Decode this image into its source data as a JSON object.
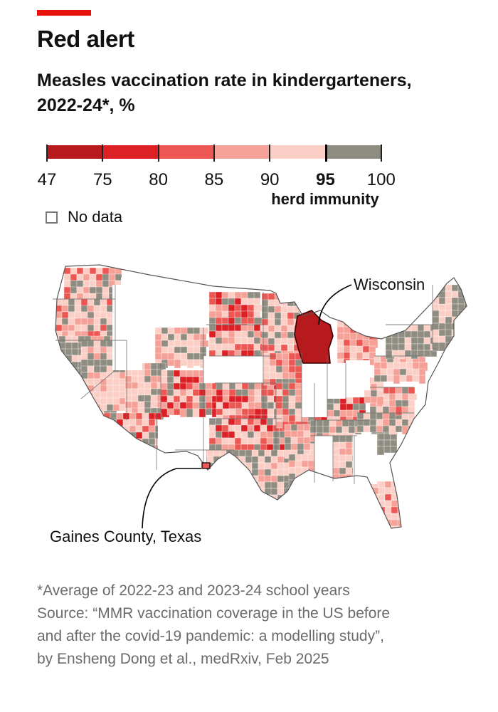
{
  "header": {
    "title": "Red alert",
    "subtitle": "Measles vaccination rate in kindergarteners, 2022-24*, %"
  },
  "legend": {
    "bins": [
      {
        "from": 47,
        "to": 75,
        "color": "#b71a1d"
      },
      {
        "from": 75,
        "to": 80,
        "color": "#dc2025"
      },
      {
        "from": 80,
        "to": 85,
        "color": "#ed5753"
      },
      {
        "from": 85,
        "to": 90,
        "color": "#f6a197"
      },
      {
        "from": 90,
        "to": 95,
        "color": "#fbcfc6"
      },
      {
        "from": 95,
        "to": 100,
        "color": "#8f8d81"
      }
    ],
    "ticks": [
      "47",
      "75",
      "80",
      "85",
      "90",
      "95",
      "100"
    ],
    "highlight_tick": "95",
    "herd_label": "herd immunity",
    "no_data_label": "No data",
    "no_data_color": "#ffffff"
  },
  "map": {
    "callouts": {
      "wisconsin": "Wisconsin",
      "gaines": "Gaines County, Texas"
    }
  },
  "footnote": {
    "lines": [
      "*Average of 2022-23 and 2023-24 school years",
      "Source: “MMR vaccination coverage in the US before",
      "and after the covid-19 pandemic: a modelling study”,",
      "by Ensheng Dong et al., medRxiv, Feb 2025"
    ]
  }
}
